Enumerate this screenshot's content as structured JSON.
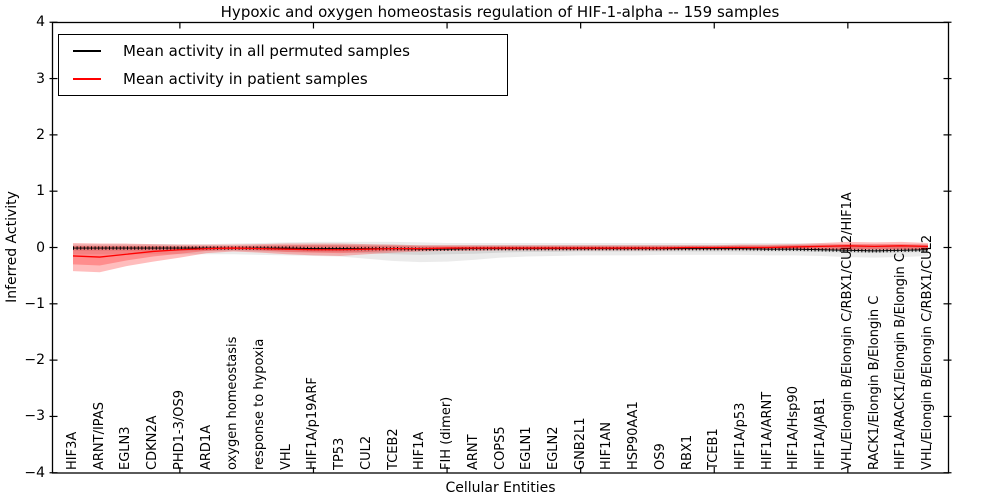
{
  "chart_data": {
    "type": "line",
    "title": "Hypoxic and oxygen homeostasis regulation of HIF-1-alpha -- 159 samples",
    "xlabel": "Cellular Entities",
    "ylabel": "Inferred Activity",
    "ylim": [
      -4,
      4
    ],
    "yticks": [
      -4,
      -3,
      -2,
      -1,
      0,
      1,
      2,
      3,
      4
    ],
    "grid": false,
    "legend_position": "upper left",
    "x_major_tick_indices": [
      4,
      9,
      14,
      19,
      24,
      29
    ],
    "categories": [
      "HIF3A",
      "ARNT/IPAS",
      "EGLN3",
      "CDKN2A",
      "PHD1-3/OS9",
      "ARD1A",
      "oxygen homeostasis",
      "response to hypoxia",
      "VHL",
      "HIF1A/p19ARF",
      "TP53",
      "CUL2",
      "TCEB2",
      "HIF1A",
      "FIH (dimer)",
      "ARNT",
      "COPS5",
      "EGLN1",
      "EGLN2",
      "GNB2L1",
      "HIF1AN",
      "HSP90AA1",
      "OS9",
      "RBX1",
      "TCEB1",
      "HIF1A/p53",
      "HIF1A/ARNT",
      "HIF1A/Hsp90",
      "HIF1A/JAB1",
      "VHL/Elongin B/Elongin C/RBX1/CUL2/HIF1A",
      "RACK1/Elongin B/Elongin C",
      "HIF1A/RACK1/Elongin B/Elongin C",
      "VHL/Elongin B/Elongin C/RBX1/CUL2"
    ],
    "series": [
      {
        "name": "Mean activity in all permuted samples",
        "color": "#000000",
        "style": "solid-with-tick-texture",
        "values": [
          -0.01,
          -0.01,
          -0.01,
          -0.01,
          -0.01,
          -0.01,
          -0.01,
          -0.01,
          -0.01,
          -0.02,
          -0.02,
          -0.02,
          -0.02,
          -0.03,
          -0.03,
          -0.02,
          -0.02,
          -0.02,
          -0.02,
          -0.02,
          -0.02,
          -0.02,
          -0.02,
          -0.02,
          -0.02,
          -0.02,
          -0.03,
          -0.03,
          -0.04,
          -0.05,
          -0.06,
          -0.05,
          -0.04
        ]
      },
      {
        "name": "Mean activity in patient samples",
        "color": "#ff0000",
        "style": "solid",
        "values": [
          -0.15,
          -0.17,
          -0.12,
          -0.07,
          -0.04,
          -0.02,
          -0.01,
          -0.02,
          -0.03,
          -0.04,
          -0.04,
          -0.03,
          -0.02,
          -0.02,
          -0.01,
          -0.01,
          -0.01,
          -0.01,
          -0.01,
          -0.01,
          -0.01,
          -0.01,
          -0.01,
          0.0,
          0.0,
          0.0,
          0.0,
          0.01,
          0.02,
          0.03,
          0.02,
          0.03,
          0.02
        ]
      }
    ],
    "bands": [
      {
        "series": "permuted",
        "level": "outer",
        "color": "#000000",
        "opacity": 0.08,
        "high": [
          0.06,
          0.06,
          0.06,
          0.06,
          0.06,
          0.06,
          0.07,
          0.08,
          0.09,
          0.1,
          0.1,
          0.1,
          0.1,
          0.09,
          0.08,
          0.08,
          0.08,
          0.08,
          0.08,
          0.08,
          0.08,
          0.08,
          0.08,
          0.08,
          0.08,
          0.08,
          0.08,
          0.08,
          0.07,
          0.06,
          0.06,
          0.06,
          0.06
        ],
        "low": [
          -0.12,
          -0.12,
          -0.12,
          -0.12,
          -0.12,
          -0.12,
          -0.12,
          -0.13,
          -0.14,
          -0.15,
          -0.16,
          -0.2,
          -0.24,
          -0.26,
          -0.25,
          -0.22,
          -0.18,
          -0.16,
          -0.15,
          -0.14,
          -0.14,
          -0.14,
          -0.13,
          -0.13,
          -0.13,
          -0.13,
          -0.14,
          -0.14,
          -0.15,
          -0.17,
          -0.18,
          -0.17,
          -0.15
        ]
      },
      {
        "series": "permuted",
        "level": "inner",
        "color": "#000000",
        "opacity": 0.09,
        "high": [
          0.03,
          0.03,
          0.03,
          0.03,
          0.03,
          0.03,
          0.03,
          0.04,
          0.04,
          0.05,
          0.05,
          0.05,
          0.05,
          0.04,
          0.04,
          0.04,
          0.04,
          0.04,
          0.04,
          0.04,
          0.04,
          0.04,
          0.04,
          0.04,
          0.04,
          0.04,
          0.04,
          0.04,
          0.04,
          0.03,
          0.03,
          0.03,
          0.03
        ],
        "low": [
          -0.06,
          -0.06,
          -0.06,
          -0.06,
          -0.06,
          -0.06,
          -0.06,
          -0.07,
          -0.07,
          -0.08,
          -0.08,
          -0.1,
          -0.12,
          -0.13,
          -0.12,
          -0.11,
          -0.09,
          -0.08,
          -0.08,
          -0.07,
          -0.07,
          -0.07,
          -0.07,
          -0.07,
          -0.07,
          -0.07,
          -0.07,
          -0.07,
          -0.08,
          -0.09,
          -0.1,
          -0.09,
          -0.08
        ]
      },
      {
        "series": "patient",
        "level": "outer",
        "color": "#ff0000",
        "opacity": 0.26,
        "high": [
          0.08,
          0.07,
          0.07,
          0.06,
          0.05,
          0.05,
          0.05,
          0.06,
          0.07,
          0.07,
          0.07,
          0.06,
          0.05,
          0.04,
          0.04,
          0.04,
          0.04,
          0.04,
          0.04,
          0.04,
          0.04,
          0.04,
          0.04,
          0.04,
          0.04,
          0.05,
          0.05,
          0.06,
          0.08,
          0.1,
          0.09,
          0.1,
          0.08
        ],
        "low": [
          -0.42,
          -0.44,
          -0.33,
          -0.25,
          -0.18,
          -0.1,
          -0.07,
          -0.09,
          -0.12,
          -0.14,
          -0.15,
          -0.12,
          -0.09,
          -0.07,
          -0.06,
          -0.06,
          -0.05,
          -0.05,
          -0.05,
          -0.05,
          -0.05,
          -0.05,
          -0.05,
          -0.04,
          -0.04,
          -0.04,
          -0.04,
          -0.04,
          -0.04,
          -0.05,
          -0.04,
          -0.05,
          -0.04
        ]
      },
      {
        "series": "patient",
        "level": "inner",
        "color": "#ff0000",
        "opacity": 0.25,
        "high": [
          0.03,
          0.03,
          0.03,
          0.03,
          0.02,
          0.02,
          0.02,
          0.03,
          0.04,
          0.04,
          0.04,
          0.03,
          0.03,
          0.02,
          0.02,
          0.02,
          0.02,
          0.02,
          0.02,
          0.02,
          0.02,
          0.02,
          0.02,
          0.02,
          0.02,
          0.03,
          0.03,
          0.04,
          0.05,
          0.06,
          0.06,
          0.06,
          0.05
        ],
        "low": [
          -0.3,
          -0.32,
          -0.23,
          -0.16,
          -0.11,
          -0.06,
          -0.04,
          -0.05,
          -0.08,
          -0.09,
          -0.1,
          -0.08,
          -0.06,
          -0.05,
          -0.04,
          -0.03,
          -0.03,
          -0.03,
          -0.03,
          -0.03,
          -0.03,
          -0.03,
          -0.03,
          -0.03,
          -0.03,
          -0.03,
          -0.03,
          -0.03,
          -0.03,
          -0.03,
          -0.03,
          -0.03,
          -0.03
        ]
      }
    ]
  }
}
